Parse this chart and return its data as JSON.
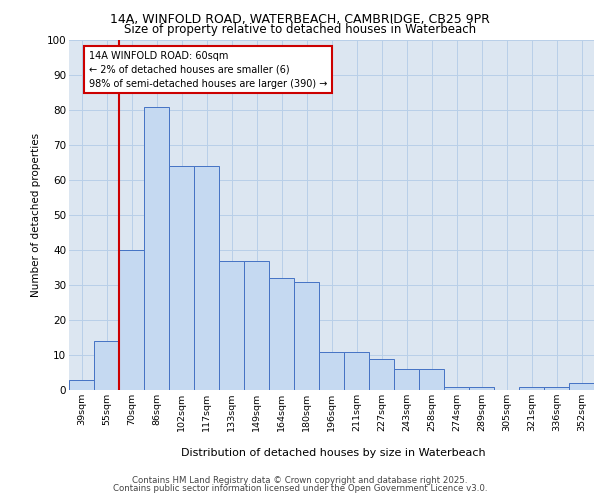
{
  "title_line1": "14A, WINFOLD ROAD, WATERBEACH, CAMBRIDGE, CB25 9PR",
  "title_line2": "Size of property relative to detached houses in Waterbeach",
  "xlabel": "Distribution of detached houses by size in Waterbeach",
  "ylabel": "Number of detached properties",
  "categories": [
    "39sqm",
    "55sqm",
    "70sqm",
    "86sqm",
    "102sqm",
    "117sqm",
    "133sqm",
    "149sqm",
    "164sqm",
    "180sqm",
    "196sqm",
    "211sqm",
    "227sqm",
    "243sqm",
    "258sqm",
    "274sqm",
    "289sqm",
    "305sqm",
    "321sqm",
    "336sqm",
    "352sqm"
  ],
  "values": [
    3,
    14,
    40,
    81,
    64,
    64,
    37,
    37,
    32,
    31,
    11,
    11,
    9,
    6,
    6,
    1,
    1,
    0,
    1,
    1,
    2
  ],
  "bar_facecolor": "#c5d9f1",
  "bar_edgecolor": "#4472c4",
  "grid_color": "#b8cfe8",
  "bg_color": "#dce6f1",
  "annotation_title": "14A WINFOLD ROAD: 60sqm",
  "annotation_line1": "← 2% of detached houses are smaller (6)",
  "annotation_line2": "98% of semi-detached houses are larger (390) →",
  "annotation_box_edgecolor": "#cc0000",
  "annotation_box_facecolor": "#ffffff",
  "vline_color": "#cc0000",
  "vline_x_index": 1,
  "footer_line1": "Contains HM Land Registry data © Crown copyright and database right 2025.",
  "footer_line2": "Contains public sector information licensed under the Open Government Licence v3.0.",
  "ylim": [
    0,
    100
  ],
  "yticks": [
    0,
    10,
    20,
    30,
    40,
    50,
    60,
    70,
    80,
    90,
    100
  ],
  "fig_width": 6.0,
  "fig_height": 5.0,
  "dpi": 100
}
